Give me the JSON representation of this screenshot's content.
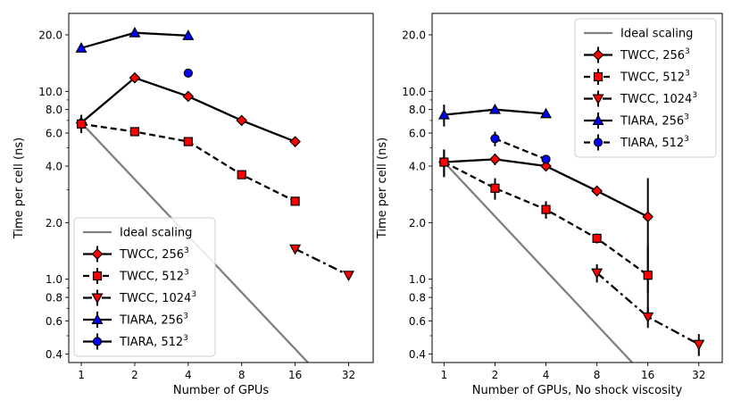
{
  "chart_data": [
    {
      "type": "line",
      "xscale": "log2",
      "yscale": "log10",
      "xlabel": "Number of GPUs",
      "ylabel": "Time per cell (ns)",
      "xlim": [
        0.85,
        44
      ],
      "ylim": [
        0.36,
        26
      ],
      "xticks": [
        1,
        2,
        4,
        8,
        16,
        32
      ],
      "xtick_labels": [
        "1",
        "2",
        "4",
        "8",
        "16",
        "32"
      ],
      "yticks": [
        0.4,
        0.6,
        0.8,
        1.0,
        2.0,
        4.0,
        6.0,
        8.0,
        10.0,
        20.0
      ],
      "ytick_labels": [
        "0.4",
        "0.6",
        "0.8",
        "1.0",
        "2.0",
        "4.0",
        "6.0",
        "8.0",
        "10.0",
        "20.0"
      ],
      "legend_position": "lower-left",
      "series": [
        {
          "name": "Ideal scaling",
          "style": "ideal",
          "color": "#808080",
          "x": [
            1,
            19
          ],
          "y": [
            6.8,
            0.358
          ]
        },
        {
          "name": "TWCC, 256",
          "sup": "3",
          "style": "solid",
          "marker": "diamond",
          "color": "#ff0000",
          "x": [
            1,
            2,
            4,
            8,
            16
          ],
          "y": [
            6.8,
            11.8,
            9.4,
            7.0,
            5.4
          ],
          "err": [
            0.7,
            0,
            0,
            0,
            0
          ]
        },
        {
          "name": "TWCC, 512",
          "sup": "3",
          "style": "dashed",
          "marker": "square",
          "color": "#ff0000",
          "x": [
            1,
            2,
            4,
            8,
            16
          ],
          "y": [
            6.7,
            6.1,
            5.4,
            3.6,
            2.6
          ],
          "err": [
            0.7,
            0.3,
            0,
            0,
            0
          ]
        },
        {
          "name": "TWCC, 1024",
          "sup": "3",
          "style": "dashdot",
          "marker": "triangle-down",
          "color": "#ff0000",
          "x": [
            16,
            32
          ],
          "y": [
            1.45,
            1.05
          ],
          "err": [
            0,
            0
          ]
        },
        {
          "name": "TIARA, 256",
          "sup": "3",
          "style": "solid",
          "marker": "triangle-up",
          "color": "#0000ff",
          "x": [
            1,
            2,
            4
          ],
          "y": [
            17.0,
            20.5,
            19.8
          ],
          "err": [
            0,
            0,
            0
          ]
        },
        {
          "name": "TIARA, 512",
          "sup": "3",
          "style": "solid",
          "marker": "circle",
          "color": "#0000ff",
          "x": [
            4
          ],
          "y": [
            12.5
          ],
          "err": [
            0
          ]
        }
      ]
    },
    {
      "type": "line",
      "xscale": "log2",
      "yscale": "log10",
      "xlabel": "Number of GPUs, No shock viscosity",
      "ylabel": "Time per cell (ns)",
      "xlim": [
        0.85,
        44
      ],
      "ylim": [
        0.36,
        26
      ],
      "xticks": [
        1,
        2,
        4,
        8,
        16,
        32
      ],
      "xtick_labels": [
        "1",
        "2",
        "4",
        "8",
        "16",
        "32"
      ],
      "yticks": [
        0.4,
        0.6,
        0.8,
        1.0,
        2.0,
        4.0,
        6.0,
        8.0,
        10.0,
        20.0
      ],
      "ytick_labels": [
        "0.4",
        "0.6",
        "0.8",
        "1.0",
        "2.0",
        "4.0",
        "6.0",
        "8.0",
        "10.0",
        "20.0"
      ],
      "legend_position": "upper-right",
      "series": [
        {
          "name": "Ideal scaling",
          "style": "ideal",
          "color": "#808080",
          "x": [
            1,
            13
          ],
          "y": [
            4.2,
            0.358
          ]
        },
        {
          "name": "TWCC, 256",
          "sup": "3",
          "style": "solid",
          "marker": "diamond",
          "color": "#ff0000",
          "x": [
            1,
            2,
            4,
            8,
            16
          ],
          "y": [
            4.2,
            4.35,
            4.0,
            2.95,
            2.15
          ],
          "err": [
            0.7,
            0.3,
            0,
            0,
            1.3
          ]
        },
        {
          "name": "TWCC, 512",
          "sup": "3",
          "style": "dashed",
          "marker": "square",
          "color": "#ff0000",
          "x": [
            1,
            2,
            4,
            8,
            16
          ],
          "y": [
            4.2,
            3.05,
            2.35,
            1.65,
            1.05
          ],
          "err": [
            0.7,
            0.4,
            0.25,
            0.1,
            0.45
          ]
        },
        {
          "name": "TWCC, 1024",
          "sup": "3",
          "style": "dashdot",
          "marker": "triangle-down",
          "color": "#ff0000",
          "x": [
            8,
            16,
            32
          ],
          "y": [
            1.08,
            0.63,
            0.45
          ],
          "err": [
            0.12,
            0.08,
            0.06
          ]
        },
        {
          "name": "TIARA, 256",
          "sup": "3",
          "style": "solid",
          "marker": "triangle-up",
          "color": "#0000ff",
          "x": [
            1,
            2,
            4
          ],
          "y": [
            7.5,
            8.0,
            7.6
          ],
          "err": [
            1.0,
            0,
            0
          ]
        },
        {
          "name": "TIARA, 512",
          "sup": "3",
          "style": "dashed",
          "marker": "circle",
          "color": "#0000ff",
          "x": [
            2,
            4
          ],
          "y": [
            5.6,
            4.35
          ],
          "err": [
            0.5,
            0
          ]
        }
      ]
    }
  ]
}
